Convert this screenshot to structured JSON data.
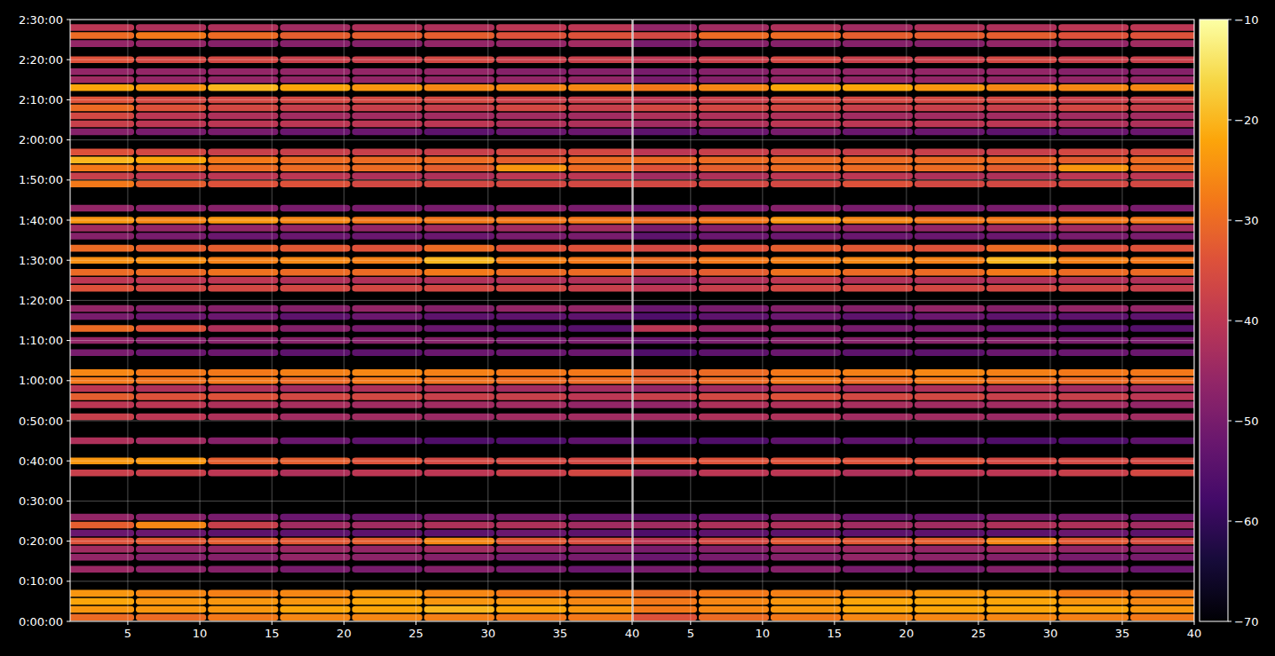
{
  "chart_data": {
    "type": "heatmap",
    "grid": true,
    "x": [
      3,
      8,
      13,
      18,
      23,
      28,
      33,
      38
    ],
    "y": [
      60,
      180,
      300,
      420,
      780,
      960,
      1080,
      1200,
      1320,
      1440,
      1560,
      2220,
      2400,
      2700,
      3060,
      3240,
      3360,
      3480,
      3600,
      3720,
      4020,
      4200,
      4380,
      4560,
      4680,
      4980,
      5100,
      5220,
      5400,
      5580,
      5760,
      5880,
      6000,
      6180,
      6540,
      6660,
      6780,
      6900,
      7020,
      7320,
      7440,
      7560,
      7680,
      7800,
      7980,
      8100,
      8220,
      8400,
      8640,
      8760,
      8880
    ],
    "xlim": [
      1,
      40
    ],
    "xticks": [
      5,
      10,
      15,
      20,
      25,
      30,
      35,
      40
    ],
    "ylim": [
      0,
      9000
    ],
    "yticks": [
      {
        "value": 0,
        "label": "0:00:00"
      },
      {
        "value": 600,
        "label": "0:10:00"
      },
      {
        "value": 1200,
        "label": "0:20:00"
      },
      {
        "value": 1800,
        "label": "0:30:00"
      },
      {
        "value": 2400,
        "label": "0:40:00"
      },
      {
        "value": 3000,
        "label": "0:50:00"
      },
      {
        "value": 3600,
        "label": "1:00:00"
      },
      {
        "value": 4200,
        "label": "1:10:00"
      },
      {
        "value": 4800,
        "label": "1:20:00"
      },
      {
        "value": 5400,
        "label": "1:30:00"
      },
      {
        "value": 6000,
        "label": "1:40:00"
      },
      {
        "value": 6600,
        "label": "1:50:00"
      },
      {
        "value": 7200,
        "label": "2:00:00"
      },
      {
        "value": 7800,
        "label": "2:10:00"
      },
      {
        "value": 8400,
        "label": "2:20:00"
      },
      {
        "value": 9000,
        "label": "2:30:00"
      }
    ],
    "colorbar": {
      "range": [
        -70,
        -10
      ],
      "ticks": [
        {
          "value": -70,
          "label": "−70"
        },
        {
          "value": -60,
          "label": "−60"
        },
        {
          "value": -50,
          "label": "−50"
        },
        {
          "value": -40,
          "label": "−40"
        },
        {
          "value": -30,
          "label": "−30"
        },
        {
          "value": -20,
          "label": "−20"
        },
        {
          "value": -10,
          "label": "−10"
        }
      ]
    },
    "panels": [
      {
        "values": [
          [
            -30,
            -30,
            -28,
            -26,
            -26,
            -27,
            -28,
            -28
          ],
          [
            -24,
            -24,
            -24,
            -22,
            -22,
            -20,
            -22,
            -24
          ],
          [
            -22,
            -24,
            -24,
            -24,
            -22,
            -24,
            -24,
            -26
          ],
          [
            -24,
            -26,
            -27,
            -26,
            -24,
            -26,
            -28,
            -28
          ],
          [
            -45,
            -47,
            -48,
            -50,
            -50,
            -48,
            -50,
            -52
          ],
          [
            -46,
            -48,
            -48,
            -46,
            -47,
            -48,
            -50,
            -50
          ],
          [
            -44,
            -46,
            -46,
            -45,
            -46,
            -44,
            -46,
            -48
          ],
          [
            -34,
            -33,
            -32,
            -33,
            -32,
            -26,
            -33,
            -35
          ],
          [
            -52,
            -52,
            -54,
            -54,
            -54,
            -54,
            -52,
            -54
          ],
          [
            -32,
            -26,
            -38,
            -44,
            -44,
            -42,
            -42,
            -44
          ],
          [
            -46,
            -48,
            -50,
            -52,
            -52,
            -50,
            -50,
            -52
          ],
          [
            -38,
            -38,
            -40,
            -42,
            -40,
            -40,
            -38,
            -36
          ],
          [
            -24,
            -24,
            -32,
            -32,
            -34,
            -36,
            -36,
            -36
          ],
          [
            -42,
            -44,
            -48,
            -52,
            -54,
            -56,
            -56,
            -54
          ],
          [
            -38,
            -40,
            -42,
            -44,
            -44,
            -45,
            -44,
            -44
          ],
          [
            -40,
            -40,
            -42,
            -43,
            -44,
            -44,
            -44,
            -46
          ],
          [
            -32,
            -34,
            -34,
            -36,
            -36,
            -38,
            -38,
            -40
          ],
          [
            -40,
            -42,
            -42,
            -44,
            -42,
            -42,
            -44,
            -44
          ],
          [
            -28,
            -29,
            -28,
            -30,
            -28,
            -29,
            -30,
            -30
          ],
          [
            -26,
            -28,
            -28,
            -27,
            -26,
            -27,
            -28,
            -28
          ],
          [
            -50,
            -52,
            -52,
            -54,
            -54,
            -52,
            -52,
            -52
          ],
          [
            -46,
            -48,
            -48,
            -48,
            -48,
            -48,
            -50,
            -50
          ],
          [
            -30,
            -34,
            -42,
            -48,
            -50,
            -52,
            -54,
            -55
          ],
          [
            -50,
            -52,
            -52,
            -54,
            -52,
            -54,
            -54,
            -54
          ],
          [
            -46,
            -48,
            -48,
            -48,
            -46,
            -48,
            -46,
            -46
          ],
          [
            -34,
            -36,
            -36,
            -36,
            -36,
            -36,
            -36,
            -38
          ],
          [
            -40,
            -40,
            -40,
            -42,
            -42,
            -42,
            -42,
            -42
          ],
          [
            -30,
            -30,
            -29,
            -30,
            -30,
            -28,
            -30,
            -30
          ],
          [
            -25,
            -25,
            -27,
            -26,
            -27,
            -20,
            -27,
            -28
          ],
          [
            -30,
            -32,
            -32,
            -33,
            -34,
            -30,
            -34,
            -34
          ],
          [
            -48,
            -50,
            -52,
            -52,
            -52,
            -52,
            -50,
            -50
          ],
          [
            -44,
            -46,
            -46,
            -46,
            -46,
            -44,
            -44,
            -44
          ],
          [
            -24,
            -26,
            -24,
            -26,
            -28,
            -28,
            -28,
            -28
          ],
          [
            -46,
            -48,
            -48,
            -50,
            -50,
            -50,
            -48,
            -50
          ],
          [
            -28,
            -32,
            -34,
            -34,
            -36,
            -36,
            -36,
            -36
          ],
          [
            -38,
            -40,
            -40,
            -40,
            -42,
            -42,
            -40,
            -40
          ],
          [
            -28,
            -30,
            -30,
            -30,
            -30,
            -32,
            -24,
            -30
          ],
          [
            -20,
            -22,
            -28,
            -30,
            -30,
            -30,
            -32,
            -30
          ],
          [
            -34,
            -36,
            -38,
            -38,
            -38,
            -38,
            -36,
            -36
          ],
          [
            -48,
            -50,
            -50,
            -52,
            -52,
            -54,
            -52,
            -52
          ],
          [
            -38,
            -40,
            -40,
            -40,
            -40,
            -40,
            -42,
            -42
          ],
          [
            -36,
            -40,
            -42,
            -44,
            -44,
            -44,
            -44,
            -44
          ],
          [
            -30,
            -34,
            -36,
            -38,
            -38,
            -38,
            -36,
            -38
          ],
          [
            -34,
            -36,
            -36,
            -36,
            -36,
            -36,
            -38,
            -38
          ],
          [
            -22,
            -24,
            -20,
            -22,
            -24,
            -26,
            -26,
            -26
          ],
          [
            -44,
            -46,
            -46,
            -46,
            -46,
            -46,
            -46,
            -46
          ],
          [
            -46,
            -46,
            -46,
            -46,
            -46,
            -46,
            -48,
            -48
          ],
          [
            -34,
            -36,
            -36,
            -38,
            -38,
            -36,
            -38,
            -38
          ],
          [
            -46,
            -46,
            -48,
            -48,
            -48,
            -46,
            -46,
            -44
          ],
          [
            -30,
            -28,
            -30,
            -32,
            -32,
            -32,
            -34,
            -34
          ],
          [
            -40,
            -42,
            -42,
            -44,
            -42,
            -42,
            -40,
            -40
          ]
        ]
      },
      {
        "values": [
          [
            -34,
            -30,
            -28,
            -26,
            -26,
            -26,
            -27,
            -28
          ],
          [
            -28,
            -26,
            -24,
            -22,
            -22,
            -22,
            -22,
            -24
          ],
          [
            -28,
            -26,
            -24,
            -22,
            -22,
            -22,
            -24,
            -26
          ],
          [
            -30,
            -28,
            -27,
            -26,
            -24,
            -24,
            -28,
            -28
          ],
          [
            -50,
            -50,
            -48,
            -50,
            -50,
            -48,
            -50,
            -52
          ],
          [
            -52,
            -50,
            -48,
            -46,
            -47,
            -48,
            -50,
            -50
          ],
          [
            -50,
            -48,
            -46,
            -45,
            -46,
            -44,
            -46,
            -48
          ],
          [
            -40,
            -36,
            -33,
            -33,
            -32,
            -26,
            -33,
            -35
          ],
          [
            -56,
            -54,
            -54,
            -54,
            -54,
            -54,
            -52,
            -54
          ],
          [
            -44,
            -42,
            -42,
            -44,
            -44,
            -42,
            -42,
            -44
          ],
          [
            -54,
            -52,
            -50,
            -52,
            -52,
            -50,
            -50,
            -52
          ],
          [
            -44,
            -40,
            -40,
            -42,
            -40,
            -40,
            -38,
            -36
          ],
          [
            -34,
            -34,
            -34,
            -34,
            -34,
            -36,
            -36,
            -36
          ],
          [
            -56,
            -56,
            -54,
            -54,
            -54,
            -56,
            -56,
            -54
          ],
          [
            -44,
            -42,
            -42,
            -44,
            -44,
            -45,
            -44,
            -44
          ],
          [
            -46,
            -42,
            -42,
            -43,
            -44,
            -44,
            -44,
            -46
          ],
          [
            -38,
            -36,
            -34,
            -36,
            -36,
            -38,
            -38,
            -40
          ],
          [
            -46,
            -44,
            -42,
            -44,
            -42,
            -42,
            -44,
            -44
          ],
          [
            -32,
            -30,
            -28,
            -30,
            -28,
            -29,
            -30,
            -30
          ],
          [
            -32,
            -30,
            -28,
            -27,
            -26,
            -27,
            -28,
            -28
          ],
          [
            -56,
            -54,
            -52,
            -54,
            -54,
            -52,
            -52,
            -52
          ],
          [
            -52,
            -50,
            -48,
            -48,
            -48,
            -48,
            -50,
            -50
          ],
          [
            -40,
            -46,
            -48,
            -50,
            -50,
            -52,
            -54,
            -55
          ],
          [
            -56,
            -54,
            -52,
            -54,
            -52,
            -54,
            -54,
            -54
          ],
          [
            -52,
            -50,
            -48,
            -48,
            -46,
            -48,
            -46,
            -46
          ],
          [
            -40,
            -38,
            -36,
            -36,
            -36,
            -36,
            -36,
            -38
          ],
          [
            -46,
            -42,
            -40,
            -42,
            -42,
            -42,
            -42,
            -42
          ],
          [
            -34,
            -32,
            -29,
            -30,
            -30,
            -28,
            -30,
            -30
          ],
          [
            -30,
            -28,
            -27,
            -26,
            -27,
            -20,
            -27,
            -28
          ],
          [
            -36,
            -34,
            -32,
            -33,
            -34,
            -30,
            -34,
            -34
          ],
          [
            -54,
            -52,
            -52,
            -52,
            -52,
            -52,
            -50,
            -50
          ],
          [
            -50,
            -48,
            -46,
            -46,
            -46,
            -44,
            -44,
            -44
          ],
          [
            -30,
            -28,
            -24,
            -26,
            -28,
            -28,
            -28,
            -28
          ],
          [
            -52,
            -50,
            -48,
            -50,
            -50,
            -50,
            -48,
            -50
          ],
          [
            -36,
            -36,
            -36,
            -34,
            -36,
            -36,
            -36,
            -36
          ],
          [
            -44,
            -42,
            -40,
            -40,
            -42,
            -42,
            -40,
            -40
          ],
          [
            -34,
            -32,
            -30,
            -30,
            -30,
            -32,
            -24,
            -30
          ],
          [
            -30,
            -30,
            -30,
            -30,
            -30,
            -30,
            -32,
            -30
          ],
          [
            -40,
            -38,
            -38,
            -38,
            -38,
            -38,
            -36,
            -36
          ],
          [
            -54,
            -52,
            -50,
            -52,
            -52,
            -54,
            -52,
            -52
          ],
          [
            -44,
            -42,
            -40,
            -40,
            -40,
            -40,
            -42,
            -42
          ],
          [
            -42,
            -42,
            -42,
            -44,
            -44,
            -44,
            -44,
            -44
          ],
          [
            -36,
            -36,
            -36,
            -38,
            -38,
            -38,
            -36,
            -38
          ],
          [
            -40,
            -38,
            -36,
            -36,
            -36,
            -36,
            -38,
            -38
          ],
          [
            -28,
            -26,
            -22,
            -22,
            -24,
            -26,
            -26,
            -26
          ],
          [
            -50,
            -48,
            -46,
            -46,
            -46,
            -46,
            -46,
            -46
          ],
          [
            -50,
            -48,
            -46,
            -46,
            -46,
            -46,
            -48,
            -48
          ],
          [
            -40,
            -38,
            -36,
            -38,
            -38,
            -36,
            -38,
            -38
          ],
          [
            -50,
            -48,
            -48,
            -48,
            -48,
            -46,
            -46,
            -44
          ],
          [
            -36,
            -30,
            -30,
            -32,
            -32,
            -32,
            -34,
            -34
          ],
          [
            -46,
            -44,
            -42,
            -44,
            -42,
            -42,
            -40,
            -40
          ]
        ]
      }
    ]
  }
}
